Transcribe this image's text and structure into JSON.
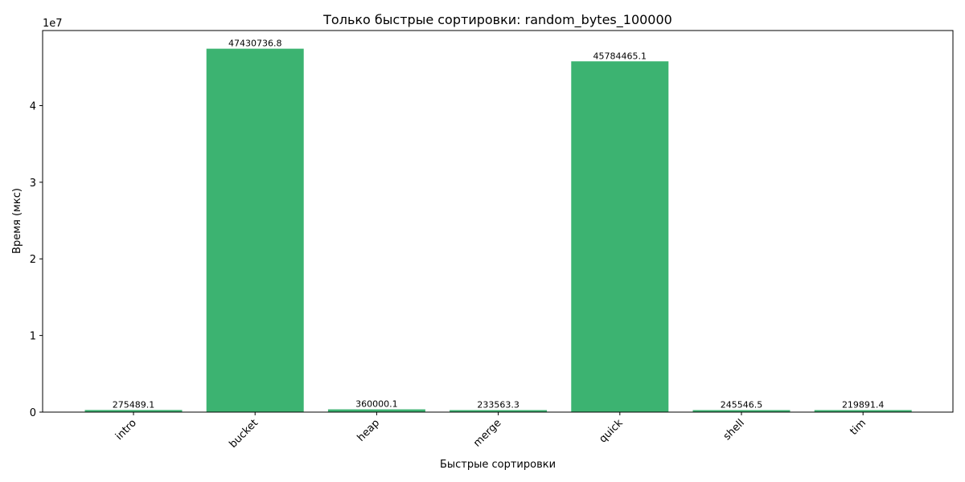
{
  "chart_data": {
    "type": "bar",
    "title": "Только быстрые сортировки: random_bytes_100000",
    "xlabel": "Быстрые сортировки",
    "ylabel": "Время (мкс)",
    "categories": [
      "intro",
      "bucket",
      "heap",
      "merge",
      "quick",
      "shell",
      "tim"
    ],
    "values": [
      275489.1,
      47430736.8,
      360000.1,
      233563.3,
      45784465.1,
      245546.5,
      219891.4
    ],
    "value_labels": [
      "275489.1",
      "47430736.8",
      "360000.1",
      "233563.3",
      "45784465.1",
      "245546.5",
      "219891.4"
    ],
    "ylim": [
      0,
      49802273.6
    ],
    "yticks": [
      0,
      10000000,
      20000000,
      30000000,
      40000000
    ],
    "ytick_labels": [
      "0",
      "1",
      "2",
      "3",
      "4"
    ],
    "y_offset_label": "1e7",
    "xtick_rotation": "45 degrees",
    "grid": false,
    "bar_color": "#3cb371"
  }
}
